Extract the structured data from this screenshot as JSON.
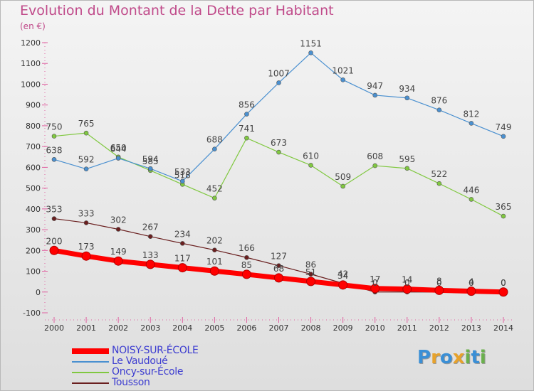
{
  "title": "Evolution du Montant de la Dette par Habitant",
  "unit": "(en €)",
  "logo": {
    "letters": [
      "P",
      "r",
      "o",
      "x",
      "i",
      "t",
      "i"
    ],
    "colors": [
      "#3a8fd6",
      "#e7a22b",
      "#3a8fd6",
      "#e7a22b",
      "#6ab04c",
      "#3a8fd6",
      "#6ab04c"
    ]
  },
  "chart_data": {
    "type": "line",
    "x": [
      2000,
      2001,
      2002,
      2003,
      2004,
      2005,
      2006,
      2007,
      2008,
      2009,
      2010,
      2011,
      2012,
      2013,
      2014
    ],
    "ylim": [
      -100,
      1200
    ],
    "yticks": [
      -100,
      0,
      100,
      200,
      300,
      400,
      500,
      600,
      700,
      800,
      900,
      1000,
      1100,
      1200
    ],
    "grid": false,
    "legend": "bottom-left",
    "series": [
      {
        "name": "NOISY-SUR-ÉCOLE",
        "color": "#ff0000",
        "values": [
          200,
          173,
          149,
          133,
          117,
          101,
          85,
          68,
          51,
          34,
          17,
          14,
          8,
          4,
          0
        ],
        "labels": [
          "200",
          "173",
          "149",
          "133",
          "117",
          "101",
          "85",
          "68",
          "51",
          "34",
          "17",
          "14",
          "8",
          "4",
          "0"
        ]
      },
      {
        "name": "Le Vaudoué",
        "color": "#4a90d0",
        "values": [
          638,
          592,
          644,
          594,
          533,
          688,
          856,
          1007,
          1151,
          1021,
          947,
          934,
          876,
          812,
          749
        ],
        "labels": [
          "638",
          "592",
          "644",
          "594",
          "533",
          "688",
          "856",
          "1007",
          "1151",
          "1021",
          "947",
          "934",
          "876",
          "812",
          "749"
        ]
      },
      {
        "name": "Oncy-sur-École",
        "color": "#80c840",
        "values": [
          750,
          765,
          650,
          585,
          518,
          452,
          741,
          673,
          610,
          509,
          608,
          595,
          522,
          446,
          365
        ],
        "labels": [
          "750",
          "765",
          "650",
          "585",
          "518",
          "452",
          "741",
          "673",
          "610",
          "509",
          "608",
          "595",
          "522",
          "446",
          "365"
        ]
      },
      {
        "name": "Tousson",
        "color": "#6a1f1f",
        "values": [
          353,
          333,
          302,
          267,
          234,
          202,
          166,
          127,
          86,
          42,
          0,
          0,
          0,
          0,
          0
        ],
        "labels": [
          "353",
          "333",
          "302",
          "267",
          "234",
          "202",
          "166",
          "127",
          "86",
          "42",
          "0",
          "0",
          "0",
          "0",
          "0"
        ]
      }
    ]
  }
}
